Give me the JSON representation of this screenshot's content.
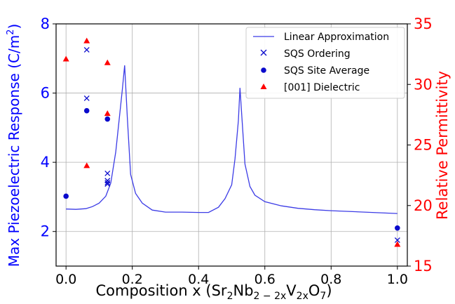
{
  "chart_data": {
    "type": "scatter",
    "xlabel_prefix": "Composition x (Sr",
    "xlabel_mid1": "Nb",
    "xlabel_mid2": "V",
    "xlabel_suffix": "O",
    "xlabel_sub1": "2",
    "xlabel_sub2": "2 − 2x",
    "xlabel_sub3": "2x",
    "xlabel_sub4": "7",
    "xlabel_close": ")",
    "ylabel_left_main": "Max Piezoelectric Response (C/m",
    "ylabel_left_sup": "2",
    "ylabel_left_close": ")",
    "ylabel_right": "Relative Permittivity",
    "xlim": [
      -0.03,
      1.03
    ],
    "ylim_left": [
      1.0,
      8.0
    ],
    "ylim_right": [
      15,
      35
    ],
    "xticks": [
      0.0,
      0.2,
      0.4,
      0.6,
      0.8,
      1.0
    ],
    "xtick_labels": [
      "0.0",
      "0.2",
      "0.4",
      "0.6",
      "0.8",
      "1.0"
    ],
    "yticks_left": [
      2,
      4,
      6,
      8
    ],
    "yticks_right": [
      15,
      20,
      25,
      30,
      35
    ],
    "grid": true,
    "legend_position": "top-right",
    "colors": {
      "left_axis": "#0000ff",
      "right_axis": "#ff0000",
      "line": "#3c3ce6",
      "sqs": "#0a0acc",
      "dielectric": "#ff0000"
    },
    "series": [
      {
        "name": "Linear Approximation",
        "axis": "left",
        "marker": "line",
        "x": [
          0.0,
          0.03,
          0.06,
          0.08,
          0.1,
          0.12,
          0.135,
          0.15,
          0.16,
          0.17,
          0.177,
          0.185,
          0.195,
          0.21,
          0.23,
          0.26,
          0.3,
          0.35,
          0.4,
          0.43,
          0.46,
          0.48,
          0.5,
          0.51,
          0.52,
          0.525,
          0.53,
          0.54,
          0.555,
          0.57,
          0.6,
          0.65,
          0.7,
          0.75,
          0.8,
          0.9,
          1.0
        ],
        "y": [
          2.65,
          2.64,
          2.66,
          2.72,
          2.82,
          3.02,
          3.4,
          4.3,
          5.2,
          6.1,
          6.8,
          5.3,
          3.65,
          3.1,
          2.82,
          2.62,
          2.56,
          2.56,
          2.55,
          2.55,
          2.7,
          2.95,
          3.35,
          4.1,
          5.2,
          6.15,
          5.4,
          3.95,
          3.3,
          3.05,
          2.86,
          2.74,
          2.67,
          2.63,
          2.6,
          2.56,
          2.52
        ]
      },
      {
        "name": "SQS Ordering",
        "axis": "left",
        "marker": "x",
        "x": [
          0.0625,
          0.0625,
          0.125,
          0.125,
          0.125,
          0.125,
          1.0
        ],
        "y": [
          7.25,
          5.85,
          3.68,
          3.47,
          3.41,
          3.37,
          1.75
        ]
      },
      {
        "name": "SQS Site Average",
        "axis": "left",
        "marker": "circle",
        "x": [
          0.0,
          0.0625,
          0.125,
          1.0
        ],
        "y": [
          3.02,
          5.49,
          5.25,
          2.1
        ]
      },
      {
        "name": "[001] Dielectric",
        "axis": "right",
        "marker": "triangle",
        "x": [
          0.0,
          0.0625,
          0.0625,
          0.125,
          0.125,
          1.0
        ],
        "y": [
          32.1,
          33.6,
          23.3,
          31.8,
          27.6,
          16.8
        ]
      }
    ]
  }
}
